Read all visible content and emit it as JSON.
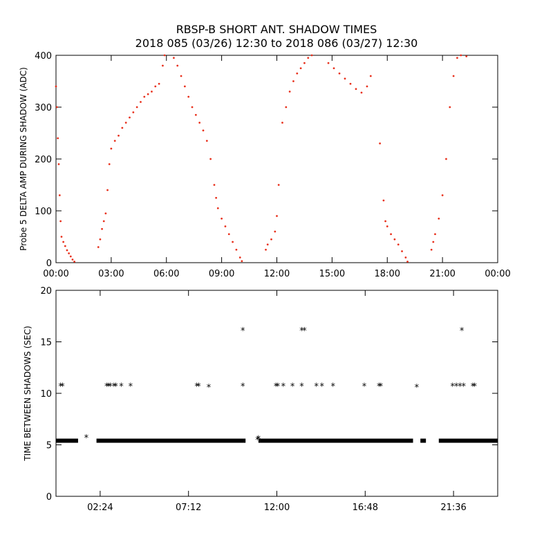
{
  "header": {
    "title_line1": "RBSP-B SHORT ANT. SHADOW TIMES",
    "title_line2": "2018 085 (03/26) 12:30 to 2018 086 (03/27) 12:30"
  },
  "colors": {
    "data_top": "#e8301c",
    "data_bottom": "#000000",
    "axes": "#000000"
  },
  "chart_data": [
    {
      "type": "scatter",
      "ylabel": "Probe 5 DELTA AMP DURING SHADOW (ADC)",
      "x_unit": "hours",
      "xlim": [
        0,
        24
      ],
      "ylim": [
        0,
        400
      ],
      "xticks": [
        0,
        3,
        6,
        9,
        12,
        15,
        18,
        21,
        24
      ],
      "xtick_labels": [
        "00:00",
        "03:00",
        "06:00",
        "09:00",
        "12:00",
        "15:00",
        "18:00",
        "21:00",
        "00:00"
      ],
      "yticks": [
        0,
        100,
        200,
        300,
        400
      ],
      "ytick_labels": [
        "0",
        "100",
        "200",
        "300",
        "400"
      ],
      "grid": false,
      "series": [
        {
          "points": [
            [
              0.0,
              340
            ],
            [
              0.05,
              300
            ],
            [
              0.1,
              240
            ],
            [
              0.15,
              190
            ],
            [
              0.2,
              130
            ],
            [
              0.25,
              80
            ],
            [
              0.3,
              50
            ],
            [
              0.4,
              40
            ],
            [
              0.5,
              32
            ],
            [
              0.6,
              24
            ],
            [
              0.7,
              18
            ],
            [
              0.8,
              12
            ],
            [
              0.9,
              6
            ],
            [
              1.0,
              2
            ],
            [
              2.3,
              30
            ],
            [
              2.4,
              45
            ],
            [
              2.5,
              65
            ],
            [
              2.6,
              80
            ],
            [
              2.7,
              95
            ],
            [
              2.8,
              140
            ],
            [
              2.9,
              190
            ],
            [
              3.0,
              220
            ],
            [
              3.2,
              235
            ],
            [
              3.4,
              245
            ],
            [
              3.6,
              260
            ],
            [
              3.8,
              270
            ],
            [
              4.0,
              280
            ],
            [
              4.2,
              290
            ],
            [
              4.4,
              300
            ],
            [
              4.6,
              310
            ],
            [
              4.8,
              320
            ],
            [
              5.0,
              325
            ],
            [
              5.2,
              330
            ],
            [
              5.4,
              340
            ],
            [
              5.6,
              345
            ],
            [
              5.8,
              380
            ],
            [
              5.9,
              400
            ],
            [
              6.4,
              395
            ],
            [
              6.6,
              380
            ],
            [
              6.8,
              360
            ],
            [
              7.0,
              340
            ],
            [
              7.2,
              320
            ],
            [
              7.4,
              300
            ],
            [
              7.6,
              285
            ],
            [
              7.8,
              270
            ],
            [
              8.0,
              255
            ],
            [
              8.2,
              235
            ],
            [
              8.4,
              200
            ],
            [
              8.6,
              150
            ],
            [
              8.7,
              125
            ],
            [
              8.8,
              105
            ],
            [
              9.0,
              85
            ],
            [
              9.2,
              70
            ],
            [
              9.4,
              55
            ],
            [
              9.6,
              40
            ],
            [
              9.8,
              25
            ],
            [
              10.0,
              10
            ],
            [
              10.1,
              3
            ],
            [
              11.4,
              25
            ],
            [
              11.5,
              35
            ],
            [
              11.7,
              45
            ],
            [
              11.9,
              60
            ],
            [
              12.0,
              90
            ],
            [
              12.1,
              150
            ],
            [
              12.3,
              270
            ],
            [
              12.5,
              300
            ],
            [
              12.7,
              330
            ],
            [
              12.9,
              350
            ],
            [
              13.1,
              365
            ],
            [
              13.3,
              375
            ],
            [
              13.5,
              385
            ],
            [
              13.7,
              395
            ],
            [
              13.9,
              400
            ],
            [
              14.8,
              385
            ],
            [
              15.1,
              375
            ],
            [
              15.4,
              365
            ],
            [
              15.7,
              355
            ],
            [
              16.0,
              345
            ],
            [
              16.3,
              335
            ],
            [
              16.6,
              328
            ],
            [
              16.9,
              340
            ],
            [
              17.1,
              360
            ],
            [
              17.6,
              230
            ],
            [
              17.8,
              120
            ],
            [
              17.9,
              80
            ],
            [
              18.0,
              70
            ],
            [
              18.2,
              55
            ],
            [
              18.4,
              45
            ],
            [
              18.6,
              35
            ],
            [
              18.8,
              22
            ],
            [
              19.0,
              10
            ],
            [
              19.1,
              2
            ],
            [
              20.4,
              25
            ],
            [
              20.5,
              40
            ],
            [
              20.6,
              55
            ],
            [
              20.8,
              85
            ],
            [
              21.0,
              130
            ],
            [
              21.2,
              200
            ],
            [
              21.4,
              300
            ],
            [
              21.6,
              360
            ],
            [
              21.8,
              395
            ],
            [
              22.0,
              400
            ],
            [
              22.3,
              398
            ]
          ]
        }
      ]
    },
    {
      "type": "scatter",
      "ylabel": "TIME BETWEEN SHADOWS (SEC)",
      "x_unit": "hours",
      "xlim": [
        0,
        24
      ],
      "ylim": [
        0,
        20
      ],
      "xticks": [
        2.4,
        7.2,
        12.0,
        16.8,
        21.6
      ],
      "xtick_labels": [
        "02:24",
        "07:12",
        "12:00",
        "16:48",
        "21:36"
      ],
      "yticks": [
        0,
        5,
        10,
        15,
        20
      ],
      "ytick_labels": [
        "0",
        "5",
        "10",
        "15",
        "20"
      ],
      "grid": false,
      "series": [
        {
          "marker": "asterisk",
          "baseline_value": 5.4,
          "baseline_segments": [
            [
              0.0,
              1.2
            ],
            [
              2.2,
              10.3
            ],
            [
              11.0,
              19.4
            ],
            [
              19.8,
              20.1
            ],
            [
              20.8,
              24.0
            ]
          ],
          "points": [
            [
              1.65,
              5.7
            ],
            [
              10.95,
              5.5
            ],
            [
              11.0,
              5.6
            ],
            [
              0.25,
              10.7
            ],
            [
              0.35,
              10.7
            ],
            [
              2.75,
              10.7
            ],
            [
              2.85,
              10.7
            ],
            [
              2.95,
              10.7
            ],
            [
              3.15,
              10.7
            ],
            [
              3.25,
              10.7
            ],
            [
              3.55,
              10.7
            ],
            [
              4.05,
              10.7
            ],
            [
              7.65,
              10.7
            ],
            [
              7.75,
              10.7
            ],
            [
              8.3,
              10.6
            ],
            [
              10.15,
              16.1
            ],
            [
              10.15,
              10.7
            ],
            [
              11.95,
              10.7
            ],
            [
              12.05,
              10.7
            ],
            [
              12.35,
              10.7
            ],
            [
              12.85,
              10.7
            ],
            [
              13.35,
              10.7
            ],
            [
              13.35,
              16.1
            ],
            [
              13.5,
              16.1
            ],
            [
              14.15,
              10.7
            ],
            [
              14.45,
              10.7
            ],
            [
              15.05,
              10.7
            ],
            [
              16.75,
              10.7
            ],
            [
              17.55,
              10.7
            ],
            [
              17.65,
              10.7
            ],
            [
              19.6,
              10.6
            ],
            [
              21.55,
              10.7
            ],
            [
              21.75,
              10.7
            ],
            [
              21.95,
              10.7
            ],
            [
              22.05,
              16.1
            ],
            [
              22.15,
              10.7
            ],
            [
              22.65,
              10.7
            ],
            [
              22.75,
              10.7
            ]
          ]
        }
      ]
    }
  ]
}
